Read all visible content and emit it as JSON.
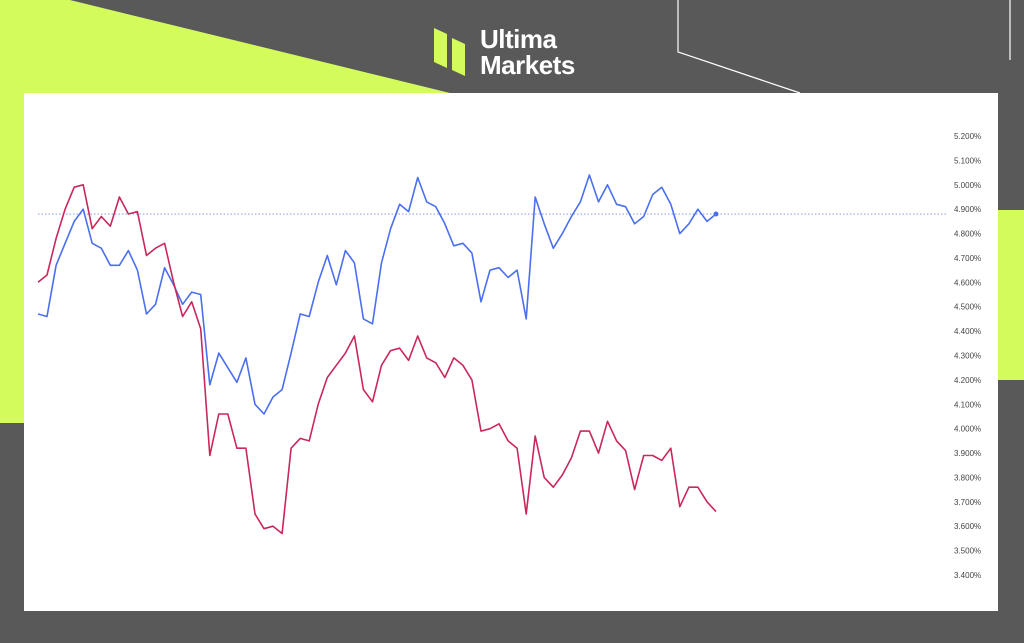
{
  "brand": {
    "name_line1": "Ultima",
    "name_line2": "Markets",
    "accent_color": "#d4fb5c",
    "background_color": "#595959"
  },
  "chart_data": {
    "type": "line",
    "title": "",
    "xlabel": "",
    "ylabel": "",
    "y_axis_position": "right",
    "ylim": [
      3.4,
      5.2
    ],
    "y_ticks": [
      "5.200%",
      "5.100%",
      "5.000%",
      "4.900%",
      "4.800%",
      "4.700%",
      "4.600%",
      "4.500%",
      "4.400%",
      "4.300%",
      "4.200%",
      "4.100%",
      "4.000%",
      "3.900%",
      "3.800%",
      "3.700%",
      "3.600%",
      "3.500%",
      "3.400%"
    ],
    "grid": false,
    "legend": "none",
    "reference_line": {
      "value": 4.88,
      "style": "dotted",
      "color": "#4a6ff0"
    },
    "series": [
      {
        "color": "#4a6ff0",
        "end_marker": true,
        "values": [
          4.47,
          4.46,
          4.67,
          4.76,
          4.85,
          4.9,
          4.76,
          4.74,
          4.67,
          4.67,
          4.73,
          4.65,
          4.47,
          4.51,
          4.66,
          4.59,
          4.51,
          4.56,
          4.55,
          4.18,
          4.31,
          4.25,
          4.19,
          4.29,
          4.1,
          4.06,
          4.13,
          4.16,
          4.31,
          4.47,
          4.46,
          4.6,
          4.71,
          4.59,
          4.73,
          4.68,
          4.45,
          4.43,
          4.68,
          4.82,
          4.92,
          4.89,
          5.03,
          4.93,
          4.91,
          4.84,
          4.75,
          4.76,
          4.72,
          4.52,
          4.65,
          4.66,
          4.62,
          4.65,
          4.45,
          4.95,
          4.84,
          4.74,
          4.8,
          4.87,
          4.93,
          5.04,
          4.93,
          5.0,
          4.92,
          4.91,
          4.84,
          4.87,
          4.96,
          4.99,
          4.92,
          4.8,
          4.84,
          4.9,
          4.85,
          4.88
        ]
      },
      {
        "color": "#c8285a",
        "end_marker": false,
        "values": [
          4.6,
          4.63,
          4.78,
          4.9,
          4.99,
          5.0,
          4.82,
          4.87,
          4.83,
          4.95,
          4.88,
          4.89,
          4.71,
          4.74,
          4.76,
          4.6,
          4.46,
          4.52,
          4.41,
          3.89,
          4.06,
          4.06,
          3.92,
          3.92,
          3.65,
          3.59,
          3.6,
          3.57,
          3.92,
          3.96,
          3.95,
          4.1,
          4.21,
          4.26,
          4.31,
          4.38,
          4.16,
          4.11,
          4.26,
          4.32,
          4.33,
          4.28,
          4.38,
          4.29,
          4.27,
          4.21,
          4.29,
          4.26,
          4.2,
          3.99,
          4.0,
          4.02,
          3.95,
          3.92,
          3.65,
          3.97,
          3.8,
          3.76,
          3.81,
          3.88,
          3.99,
          3.99,
          3.9,
          4.03,
          3.95,
          3.91,
          3.75,
          3.89,
          3.89,
          3.87,
          3.92,
          3.68,
          3.76,
          3.76,
          3.7,
          3.66
        ]
      }
    ]
  }
}
